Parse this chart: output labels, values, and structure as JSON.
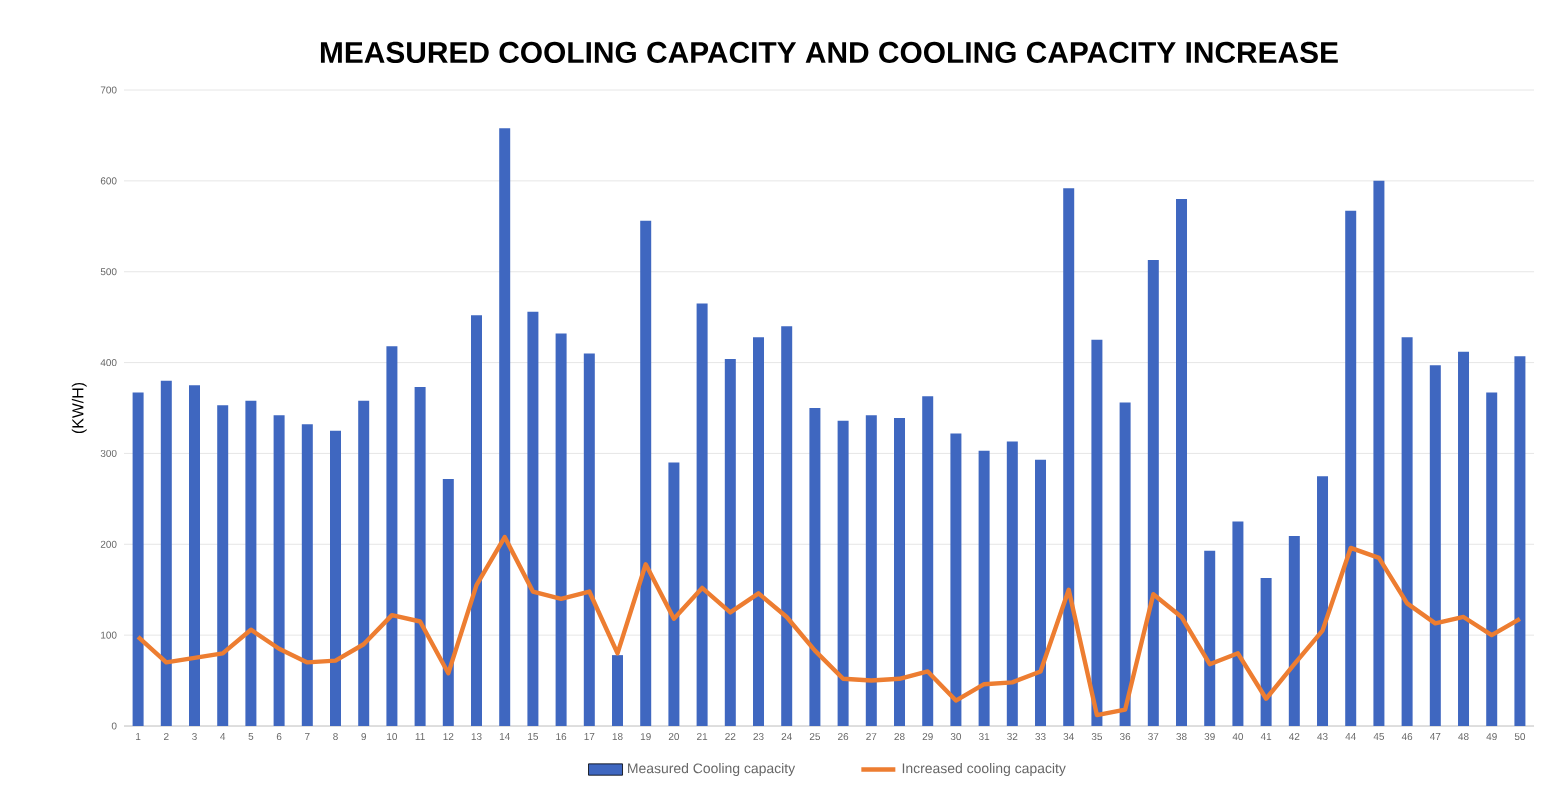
{
  "chart_data": {
    "type": "bar",
    "title": "MEASURED COOLING CAPACITY AND COOLING CAPACITY INCREASE",
    "ylabel": "(KW/H)",
    "categories": [
      "1",
      "2",
      "3",
      "4",
      "5",
      "6",
      "7",
      "8",
      "9",
      "10",
      "11",
      "12",
      "13",
      "14",
      "15",
      "16",
      "17",
      "18",
      "19",
      "20",
      "21",
      "22",
      "23",
      "24",
      "25",
      "26",
      "27",
      "28",
      "29",
      "30",
      "31",
      "32",
      "33",
      "34",
      "35",
      "36",
      "37",
      "38",
      "39",
      "40",
      "41",
      "42",
      "43",
      "44",
      "45",
      "46",
      "47",
      "48",
      "49",
      "50"
    ],
    "series": [
      {
        "name": "Measured Cooling capacity",
        "color": "#3f67c0",
        "values": [
          367,
          380,
          375,
          353,
          358,
          342,
          332,
          325,
          358,
          418,
          373,
          272,
          452,
          658,
          456,
          432,
          410,
          78,
          556,
          290,
          465,
          404,
          428,
          440,
          350,
          336,
          342,
          339,
          363,
          322,
          303,
          313,
          293,
          592,
          425,
          356,
          513,
          580,
          193,
          225,
          163,
          209,
          275,
          567,
          600,
          428,
          397,
          412,
          367,
          407
        ]
      },
      {
        "name": "Increased cooling capacity",
        "type": "line",
        "color": "#ed7d31",
        "values": [
          98,
          70,
          75,
          80,
          106,
          85,
          70,
          72,
          90,
          122,
          115,
          58,
          155,
          208,
          148,
          140,
          148,
          80,
          178,
          118,
          152,
          125,
          146,
          120,
          83,
          52,
          50,
          52,
          60,
          28,
          46,
          48,
          60,
          150,
          12,
          18,
          145,
          120,
          68,
          80,
          30,
          68,
          105,
          196,
          185,
          135,
          113,
          120,
          100,
          118
        ]
      }
    ],
    "ylim": [
      0,
      700
    ],
    "yticks": [
      0,
      100,
      200,
      300,
      400,
      500,
      600,
      700
    ],
    "grid": "y",
    "legend": "bottom"
  }
}
